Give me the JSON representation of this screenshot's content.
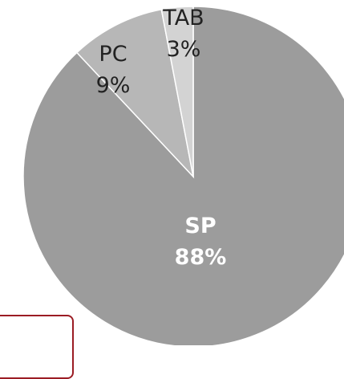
{
  "chart_data": {
    "type": "pie",
    "slices": [
      {
        "label": "SP",
        "value": 88,
        "value_label": "88%",
        "color": "#9c9c9c"
      },
      {
        "label": "PC",
        "value": 9,
        "value_label": "9%",
        "color": "#b7b7b7"
      },
      {
        "label": "TAB",
        "value": 3,
        "value_label": "3%",
        "color": "#d3d3d3"
      }
    ],
    "title": "",
    "legend": "none",
    "start": "12 o'clock, clockwise",
    "callout_color": "#9b1c24"
  }
}
